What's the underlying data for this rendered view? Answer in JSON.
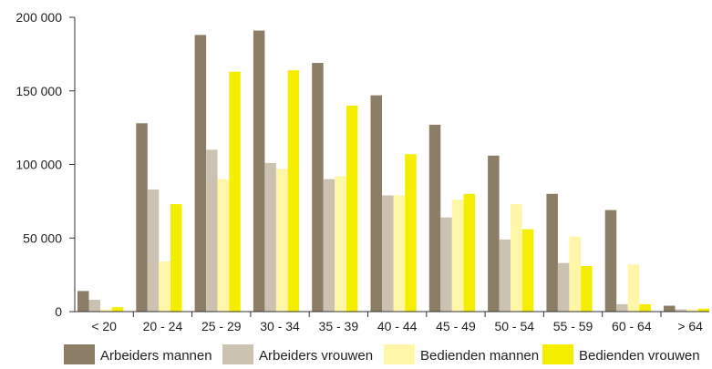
{
  "chart_data": {
    "type": "bar",
    "title": "",
    "xlabel": "",
    "ylabel": "",
    "ylim": [
      0,
      200000
    ],
    "y_ticks": [
      0,
      50000,
      100000,
      150000,
      200000
    ],
    "y_tick_labels": [
      "0",
      "50 000",
      "100 000",
      "150 000",
      "200 000"
    ],
    "grid": false,
    "legend_position": "bottom",
    "categories": [
      "< 20",
      "20 - 24",
      "25 - 29",
      "30 - 34",
      "35 - 39",
      "40 - 44",
      "45 - 49",
      "50 - 54",
      "55 - 59",
      "60 - 64",
      "> 64"
    ],
    "series": [
      {
        "name": "Arbeiders mannen",
        "color": "#8b7d66",
        "values": [
          14000,
          128000,
          188000,
          191000,
          169000,
          147000,
          127000,
          106000,
          80000,
          69000,
          4000
        ]
      },
      {
        "name": "Arbeiders vrouwen",
        "color": "#cbc2b1",
        "values": [
          8000,
          83000,
          110000,
          101000,
          90000,
          79000,
          64000,
          49000,
          33000,
          5000,
          1500
        ]
      },
      {
        "name": "Bedienden mannen",
        "color": "#fff6a8",
        "values": [
          1500,
          34000,
          90000,
          97000,
          92000,
          79000,
          76000,
          73000,
          51000,
          32000,
          1500
        ]
      },
      {
        "name": "Bedienden vrouwen",
        "color": "#f5ee00",
        "values": [
          3000,
          73000,
          163000,
          164000,
          140000,
          107000,
          80000,
          56000,
          31000,
          5000,
          2000
        ]
      }
    ]
  }
}
